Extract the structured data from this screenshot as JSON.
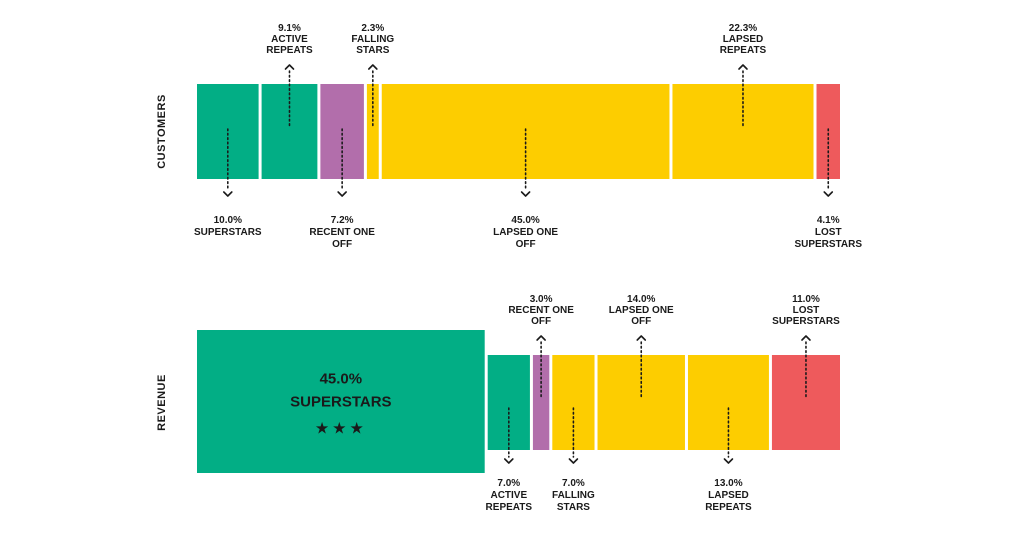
{
  "colors": {
    "green": "#02AE85",
    "purple": "#B26EAB",
    "yellow": "#FDCD00",
    "red": "#EE5A5C",
    "text": "#1a1a1a",
    "separator": "#ffffff"
  },
  "chart_data": [
    {
      "type": "bar",
      "subtype": "stacked-100",
      "axis_label": "CUSTOMERS",
      "segments": [
        {
          "pct": "10.0%",
          "name": "SUPERSTARS",
          "value": 10.0,
          "color": "green",
          "label_side": "below"
        },
        {
          "pct": "9.1%",
          "name": "ACTIVE REPEATS",
          "value": 9.1,
          "color": "green",
          "label_side": "above"
        },
        {
          "pct": "7.2%",
          "name": "RECENT ONE OFF",
          "value": 7.2,
          "color": "purple",
          "label_side": "below"
        },
        {
          "pct": "2.3%",
          "name": "FALLING STARS",
          "value": 2.3,
          "color": "yellow",
          "label_side": "above"
        },
        {
          "pct": "45.0%",
          "name": "LAPSED ONE OFF",
          "value": 45.0,
          "color": "yellow",
          "label_side": "below"
        },
        {
          "pct": "22.3%",
          "name": "LAPSED REPEATS",
          "value": 22.3,
          "color": "yellow",
          "label_side": "above"
        },
        {
          "pct": "4.1%",
          "name": "LOST SUPERSTARS",
          "value": 4.1,
          "color": "red",
          "label_side": "below"
        }
      ]
    },
    {
      "type": "bar",
      "subtype": "stacked-100",
      "axis_label": "REVENUE",
      "segments": [
        {
          "pct": "45.0%",
          "name": "SUPERSTARS",
          "value": 45.0,
          "color": "green",
          "label_side": "inside",
          "stars": "★★★"
        },
        {
          "pct": "7.0%",
          "name": "ACTIVE REPEATS",
          "value": 7.0,
          "color": "green",
          "label_side": "below"
        },
        {
          "pct": "3.0%",
          "name": "RECENT ONE OFF",
          "value": 3.0,
          "color": "purple",
          "label_side": "above"
        },
        {
          "pct": "7.0%",
          "name": "FALLING STARS",
          "value": 7.0,
          "color": "yellow",
          "label_side": "below"
        },
        {
          "pct": "14.0%",
          "name": "LAPSED ONE OFF",
          "value": 14.0,
          "color": "yellow",
          "label_side": "above"
        },
        {
          "pct": "13.0%",
          "name": "LAPSED REPEATS",
          "value": 13.0,
          "color": "yellow",
          "label_side": "below"
        },
        {
          "pct": "11.0%",
          "name": "LOST SUPERSTARS",
          "value": 11.0,
          "color": "red",
          "label_side": "above"
        }
      ]
    }
  ]
}
